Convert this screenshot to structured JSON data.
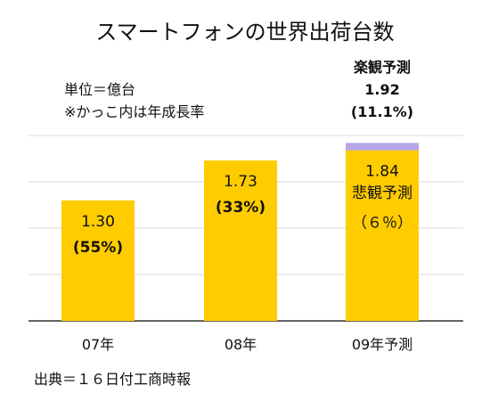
{
  "title": "スマートフォンの世界出荷台数",
  "notes": {
    "unit": "単位＝億台",
    "paren": "※かっこ内は年成長率"
  },
  "source": "出典＝１６日付工商時報",
  "colors": {
    "bar": "#FFCC00",
    "optimistic_segment": "#B9A6E8",
    "grid": "#D9D9D9",
    "axis": "#333333"
  },
  "chart_data": {
    "type": "bar",
    "categories": [
      "07年",
      "08年",
      "09年予測"
    ],
    "values": [
      1.3,
      1.73,
      1.84
    ],
    "value_labels": [
      "1.30",
      "1.73",
      "1.84"
    ],
    "growth_labels": [
      "(55%)",
      "(33%)",
      "（６％）"
    ],
    "forecast": {
      "optimistic": {
        "label": "楽観予測",
        "value": 1.92,
        "value_label": "1.92",
        "growth_label": "(11.1%)"
      },
      "pessimistic_label": "悲観予測"
    },
    "ylim": [
      0,
      2.0
    ],
    "grid": true,
    "legend": "none"
  }
}
